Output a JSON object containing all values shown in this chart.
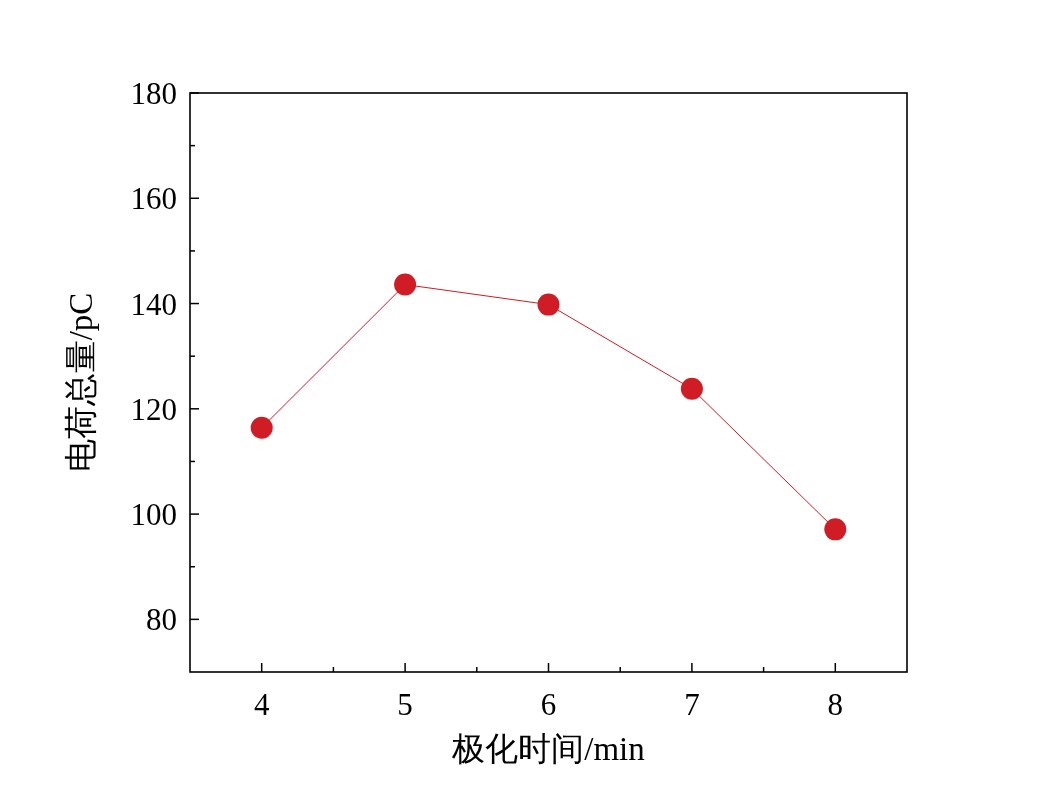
{
  "chart_data": {
    "type": "line",
    "xlabel": "极化时间/min",
    "ylabel": "电荷总量/pC",
    "x": [
      4,
      5,
      6,
      7,
      8
    ],
    "series": [
      {
        "color": "#d01c24",
        "values": [
          116.4,
          143.6,
          139.8,
          123.8,
          97.1
        ]
      }
    ],
    "xlim": [
      3.5,
      8.5
    ],
    "ylim": [
      70,
      180
    ],
    "xticks": [
      4,
      {
        "value": 4.5,
        "label": null
      },
      5,
      {
        "value": 5.5,
        "label": null
      },
      6,
      {
        "value": 6.5,
        "label": null
      },
      7,
      {
        "value": 7.5,
        "label": null
      },
      8
    ],
    "yticks": [
      80,
      {
        "value": 90,
        "label": null
      },
      100,
      {
        "value": 110,
        "label": null
      },
      120,
      {
        "value": 130,
        "label": null
      },
      140,
      {
        "value": 150,
        "label": null
      },
      160,
      {
        "value": 170,
        "label": null
      },
      180
    ],
    "marker": "circle",
    "line_style": "solid"
  }
}
